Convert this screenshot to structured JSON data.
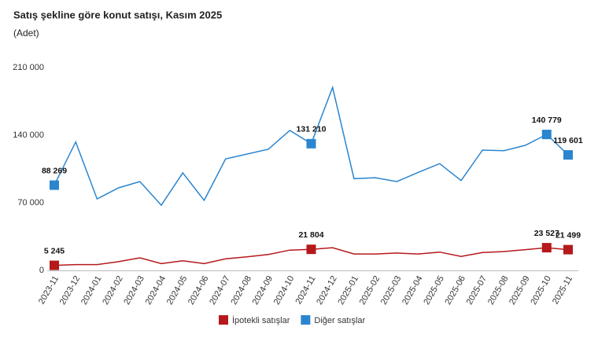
{
  "chart_data": {
    "type": "line",
    "title": "Satış şekline göre konut satışı, Kasım 2025",
    "subtitle": "(Adet)",
    "categories": [
      "2023-11",
      "2023-12",
      "2024-01",
      "2024-02",
      "2024-03",
      "2024-04",
      "2024-05",
      "2024-06",
      "2024-07",
      "2024-08",
      "2024-09",
      "2024-10",
      "2024-11",
      "2024-12",
      "2025-01",
      "2025-02",
      "2025-03",
      "2025-04",
      "2025-05",
      "2025-06",
      "2025-07",
      "2025-08",
      "2025-09",
      "2025-10",
      "2025-11"
    ],
    "series": [
      {
        "name": "İpotekli satışlar",
        "color": "#b5191b",
        "values": [
          5245,
          6000,
          6000,
          9000,
          13000,
          7000,
          10000,
          7000,
          12000,
          14000,
          16500,
          21000,
          21804,
          23500,
          17000,
          17000,
          18000,
          17000,
          19000,
          14500,
          18500,
          19500,
          21500,
          23527,
          21499
        ],
        "value_labels": [
          "5 245",
          null,
          null,
          null,
          null,
          null,
          null,
          null,
          null,
          null,
          null,
          null,
          "21 804",
          null,
          null,
          null,
          null,
          null,
          null,
          null,
          null,
          null,
          null,
          "23 527",
          "21 499"
        ]
      },
      {
        "name": "Diğer satışlar",
        "color": "#2b85cf",
        "values": [
          88269,
          133000,
          74000,
          85500,
          92000,
          67500,
          101000,
          72500,
          115500,
          120500,
          125500,
          145000,
          131210,
          189500,
          95000,
          96000,
          92000,
          101500,
          110500,
          93000,
          124500,
          124000,
          129500,
          140779,
          119601
        ],
        "value_labels": [
          "88 269",
          null,
          null,
          null,
          null,
          null,
          null,
          null,
          null,
          null,
          null,
          null,
          "131 210",
          null,
          null,
          null,
          null,
          null,
          null,
          null,
          null,
          null,
          null,
          "140 779",
          "119 601"
        ]
      }
    ],
    "ylim": [
      0,
      210000
    ],
    "yticks": [
      {
        "value": 0,
        "label": "0"
      },
      {
        "value": 70000,
        "label": "70 000"
      },
      {
        "value": 140000,
        "label": "140 000"
      },
      {
        "value": 210000,
        "label": "210 000"
      }
    ],
    "grid": false,
    "legend": "bottom"
  }
}
